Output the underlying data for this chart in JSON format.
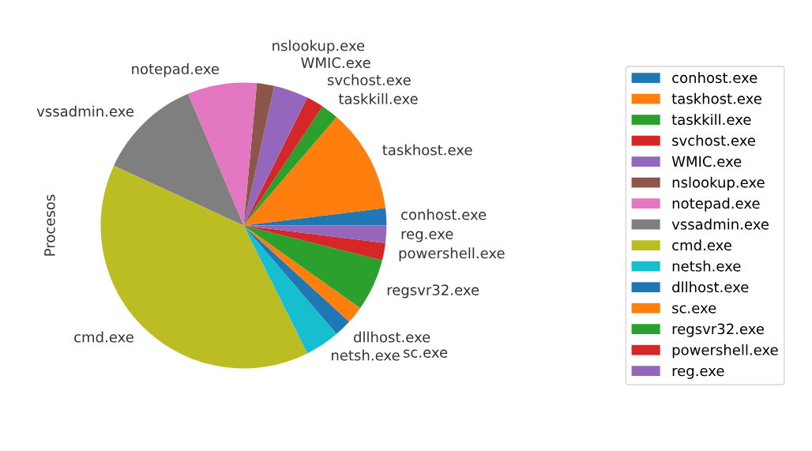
{
  "chart_data": {
    "type": "pie",
    "ylabel": "Procesos",
    "legend": "right",
    "categories": [
      "conhost.exe",
      "taskhost.exe",
      "taskkill.exe",
      "svchost.exe",
      "WMIC.exe",
      "nslookup.exe",
      "notepad.exe",
      "vssadmin.exe",
      "cmd.exe",
      "netsh.exe",
      "dllhost.exe",
      "sc.exe",
      "regsvr32.exe",
      "powershell.exe",
      "reg.exe"
    ],
    "values": [
      1.96,
      11.76,
      1.96,
      1.96,
      3.92,
      1.96,
      7.84,
      11.76,
      39.24,
      3.92,
      1.96,
      1.96,
      5.88,
      1.96,
      1.96
    ],
    "colors": [
      "#1f77b4",
      "#ff7f0e",
      "#2ca02c",
      "#d62728",
      "#9467bd",
      "#8c564b",
      "#e377c2",
      "#7f7f7f",
      "#bcbd22",
      "#17becf",
      "#1f77b4",
      "#ff7f0e",
      "#2ca02c",
      "#d62728",
      "#9467bd"
    ]
  }
}
